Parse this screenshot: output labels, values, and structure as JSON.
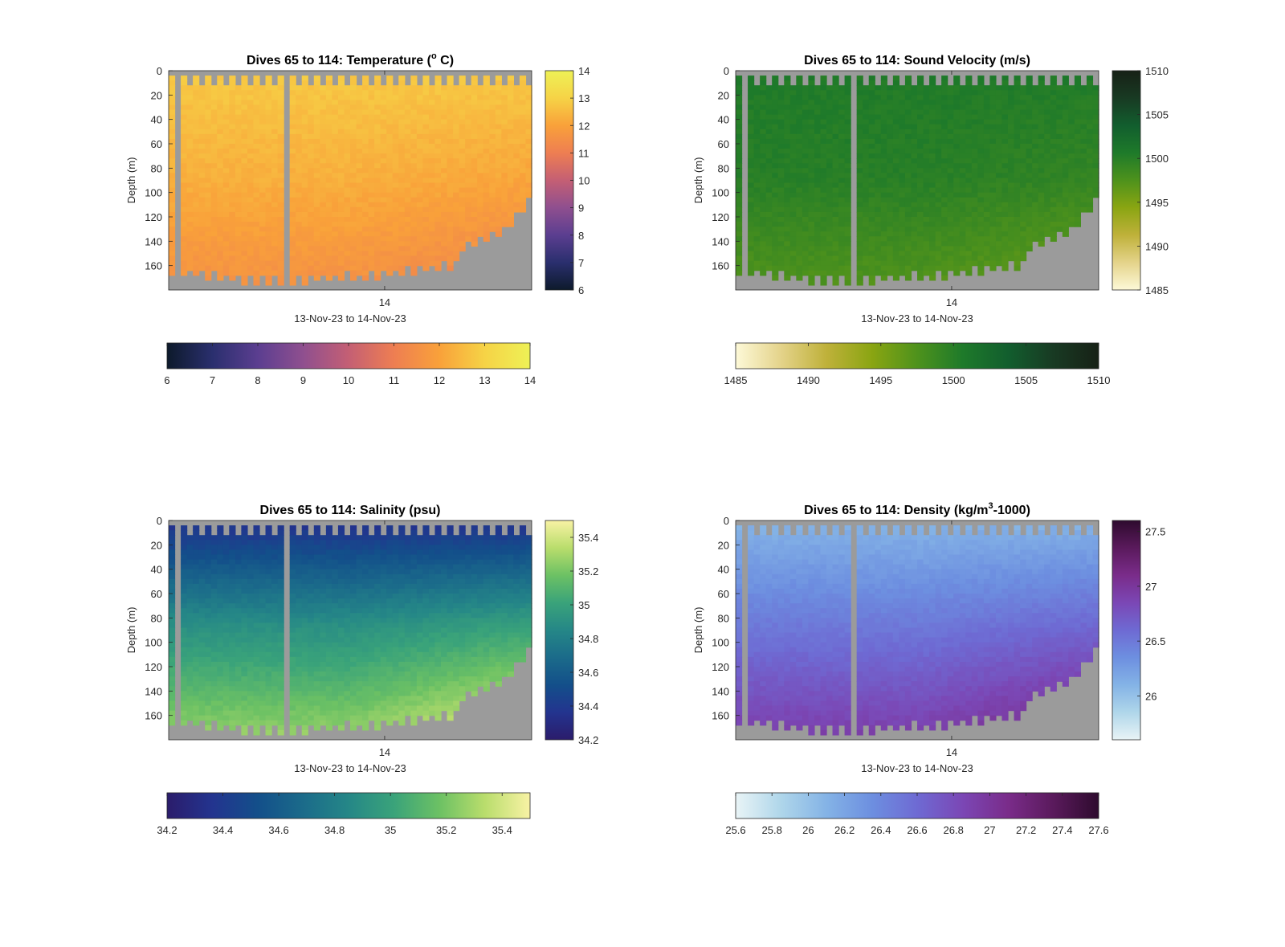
{
  "figure": {
    "background": "#ffffff",
    "nodata_color": "#9b9b9b"
  },
  "chart_data": [
    {
      "type": "heatmap",
      "title_main": "Dives 65 to 114: Temperature (",
      "title_sup": "o",
      "title_tail": " C)",
      "xlabel": "13-Nov-23 to 14-Nov-23",
      "ylabel": "Depth (m)",
      "x_tick_labels": [
        "14"
      ],
      "y_tick_labels": [
        "0",
        "20",
        "40",
        "60",
        "80",
        "100",
        "120",
        "140",
        "160"
      ],
      "y_ticks": [
        0,
        20,
        40,
        60,
        80,
        100,
        120,
        140,
        160
      ],
      "ylim": [
        0,
        180
      ],
      "y_reversed": true,
      "colormap": [
        "#0d1a2b",
        "#2a2f6e",
        "#5b3e90",
        "#8f4f8f",
        "#c45f74",
        "#ee7e52",
        "#f9a13a",
        "#f6d346",
        "#eef156"
      ],
      "colorbar": {
        "range": [
          6,
          14
        ],
        "ticks": [
          6,
          7,
          8,
          9,
          10,
          11,
          12,
          13,
          14
        ],
        "tick_labels": [
          "6",
          "7",
          "8",
          "9",
          "10",
          "11",
          "12",
          "13",
          "14"
        ]
      },
      "horizontal_colorbar": {
        "range": [
          6,
          14
        ],
        "ticks": [
          6,
          7,
          8,
          9,
          10,
          11,
          12,
          13,
          14
        ],
        "tick_labels": [
          "6",
          "7",
          "8",
          "9",
          "10",
          "11",
          "12",
          "13",
          "14"
        ]
      },
      "approx_values": {
        "surface": 12.8,
        "mid_depth": 12.3,
        "deep_bottom": 11.6
      }
    },
    {
      "type": "heatmap",
      "title_main": "Dives 65 to 114: Sound Velocity (m/s)",
      "title_sup": "",
      "title_tail": "",
      "xlabel": "13-Nov-23 to 14-Nov-23",
      "ylabel": "Depth (m)",
      "x_tick_labels": [
        "14"
      ],
      "y_tick_labels": [
        "0",
        "20",
        "40",
        "60",
        "80",
        "100",
        "120",
        "140",
        "160"
      ],
      "y_ticks": [
        0,
        20,
        40,
        60,
        80,
        100,
        120,
        140,
        160
      ],
      "ylim": [
        0,
        180
      ],
      "y_reversed": true,
      "colormap": [
        "#fdf9d8",
        "#e4d38a",
        "#bfb13a",
        "#8aa512",
        "#4e921c",
        "#1e7a2a",
        "#125e2e",
        "#183a23",
        "#172116"
      ],
      "colorbar": {
        "range": [
          1485,
          1510
        ],
        "ticks": [
          1485,
          1490,
          1495,
          1500,
          1505,
          1510
        ],
        "tick_labels": [
          "1485",
          "1490",
          "1495",
          "1500",
          "1505",
          "1510"
        ]
      },
      "horizontal_colorbar": {
        "range": [
          1485,
          1510
        ],
        "ticks": [
          1485,
          1490,
          1495,
          1500,
          1505,
          1510
        ],
        "tick_labels": [
          "1485",
          "1490",
          "1495",
          "1500",
          "1505",
          "1510"
        ]
      },
      "approx_values": {
        "surface": 1500.5,
        "mid_depth": 1500.0,
        "deep_bottom": 1497.5
      }
    },
    {
      "type": "heatmap",
      "title_main": "Dives 65 to 114: Salinity (psu)",
      "title_sup": "",
      "title_tail": "",
      "xlabel": "13-Nov-23 to 14-Nov-23",
      "ylabel": "Depth (m)",
      "x_tick_labels": [
        "14"
      ],
      "y_tick_labels": [
        "0",
        "20",
        "40",
        "60",
        "80",
        "100",
        "120",
        "140",
        "160"
      ],
      "y_ticks": [
        0,
        20,
        40,
        60,
        80,
        100,
        120,
        140,
        160
      ],
      "ylim": [
        0,
        180
      ],
      "y_reversed": true,
      "colormap": [
        "#2b1c6b",
        "#23348f",
        "#134f8a",
        "#1b6b8a",
        "#258787",
        "#3aa37a",
        "#6cc164",
        "#b9dd6c",
        "#f8f2a4"
      ],
      "colorbar": {
        "range": [
          34.2,
          35.5
        ],
        "ticks": [
          34.2,
          34.4,
          34.6,
          34.8,
          35,
          35.2,
          35.4
        ],
        "tick_labels": [
          "34.2",
          "34.4",
          "34.6",
          "34.8",
          "35",
          "35.2",
          "35.4"
        ]
      },
      "horizontal_colorbar": {
        "range": [
          34.2,
          35.5
        ],
        "ticks": [
          34.2,
          34.4,
          34.6,
          34.8,
          35,
          35.2,
          35.4
        ],
        "tick_labels": [
          "34.2",
          "34.4",
          "34.6",
          "34.8",
          "35",
          "35.2",
          "35.4"
        ]
      },
      "approx_values": {
        "surface": 34.35,
        "mid_depth": 34.9,
        "deep_bottom": 35.25
      }
    },
    {
      "type": "heatmap",
      "title_main": "Dives 65 to 114: Density (kg/m",
      "title_sup": "3",
      "title_tail": "-1000)",
      "xlabel": "13-Nov-23 to 14-Nov-23",
      "ylabel": "Depth (m)",
      "x_tick_labels": [
        "14"
      ],
      "y_tick_labels": [
        "0",
        "20",
        "40",
        "60",
        "80",
        "100",
        "120",
        "140",
        "160"
      ],
      "y_ticks": [
        0,
        20,
        40,
        60,
        80,
        100,
        120,
        140,
        160
      ],
      "ylim": [
        0,
        180
      ],
      "y_reversed": true,
      "colormap": [
        "#e9f4f6",
        "#afd6ea",
        "#84b3e6",
        "#6d8fe0",
        "#6e6ad3",
        "#7b47b5",
        "#7a2c8a",
        "#5a1a5c",
        "#2e0b2e"
      ],
      "colorbar": {
        "range": [
          25.6,
          27.6
        ],
        "ticks": [
          26,
          26.5,
          27,
          27.5
        ],
        "tick_labels": [
          "26",
          "26.5",
          "27",
          "27.5"
        ]
      },
      "horizontal_colorbar": {
        "range": [
          25.6,
          27.6
        ],
        "ticks": [
          25.6,
          25.8,
          26,
          26.2,
          26.4,
          26.6,
          26.8,
          27,
          27.2,
          27.4,
          27.6
        ],
        "tick_labels": [
          "25.6",
          "25.8",
          "26",
          "26.2",
          "26.4",
          "26.6",
          "26.8",
          "27",
          "27.2",
          "27.4",
          "27.6"
        ]
      },
      "approx_values": {
        "surface": 26.1,
        "mid_depth": 26.5,
        "deep_bottom": 26.9
      }
    }
  ]
}
